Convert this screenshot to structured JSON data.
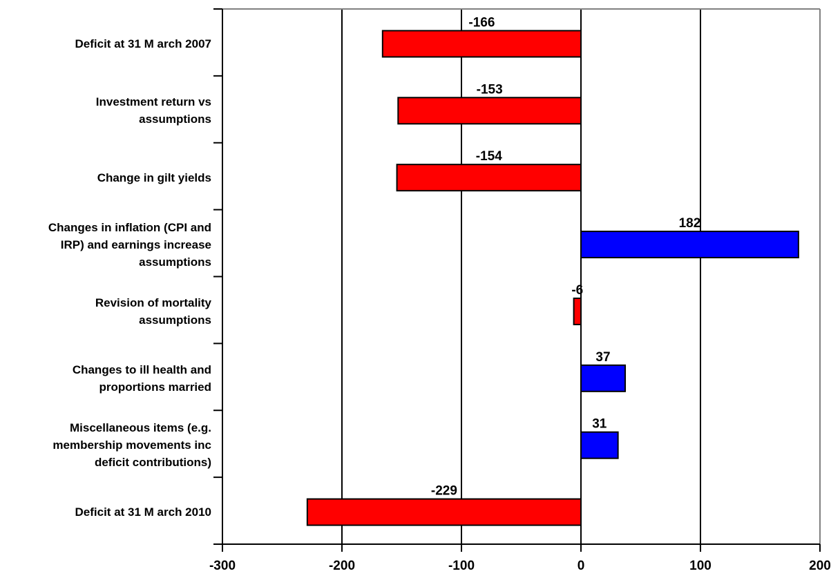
{
  "chart_data": {
    "type": "bar",
    "orientation": "horizontal",
    "categories": [
      "Deficit at 31 M arch 2007",
      "Investment return vs assumptions",
      "Change in gilt yields",
      "Changes in inflation (CPI and IRP) and earnings increase assumptions",
      "Revision of mortality assumptions",
      "Changes to ill health and proportions married",
      "Miscellaneous items (e.g. membership movements inc deficit contributions)",
      "Deficit at 31 M arch 2010"
    ],
    "category_lines": [
      [
        "Deficit at 31 M arch 2007"
      ],
      [
        "Investment return vs",
        "assumptions"
      ],
      [
        "Change in gilt yields"
      ],
      [
        "Changes in inflation (CPI and",
        "IRP) and earnings increase",
        "assumptions"
      ],
      [
        "Revision of mortality",
        "assumptions"
      ],
      [
        "Changes to ill health and",
        "proportions married"
      ],
      [
        "Miscellaneous items (e.g.",
        "membership movements inc",
        "deficit contributions)"
      ],
      [
        "Deficit at 31 M arch 2010"
      ]
    ],
    "values": [
      -166,
      -153,
      -154,
      182,
      -6,
      37,
      31,
      -229
    ],
    "data_labels": [
      "-166",
      "-153",
      "-154",
      "182",
      "-6",
      "37",
      "31",
      "-229"
    ],
    "xlim": [
      -300,
      200
    ],
    "x_ticks": [
      -300,
      -200,
      -100,
      0,
      100,
      200
    ],
    "x_tick_labels": [
      "-300",
      "-200",
      "-100",
      "0",
      "100",
      "200"
    ],
    "grid": "vertical",
    "colors": {
      "negative": "#ff0000",
      "positive": "#0000ff",
      "outline": "#000000"
    }
  }
}
